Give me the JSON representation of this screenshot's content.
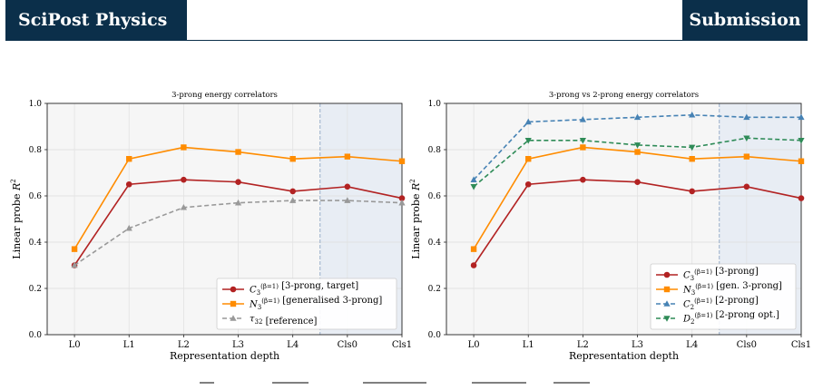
{
  "header": {
    "journal": "SciPost Physics",
    "tag": "Submission"
  },
  "chart_data": [
    {
      "type": "line",
      "title": "3-prong energy correlators",
      "xlabel": "Representation depth",
      "ylabel": "Linear probe R²",
      "ylim": [
        0.0,
        1.0
      ],
      "yticks": [
        "0.0",
        "0.2",
        "0.4",
        "0.6",
        "0.8",
        "1.0"
      ],
      "categories": [
        "L0",
        "L1",
        "L2",
        "L3",
        "L4",
        "Cls0",
        "Cls1"
      ],
      "grid": true,
      "shaded_region_from": "Cls0",
      "legend_placement": "lower-right",
      "series": [
        {
          "name": "C3(β=1)  [3-prong, target]",
          "color": "#b22222",
          "marker": "circle",
          "dash": "solid",
          "values": [
            0.3,
            0.65,
            0.67,
            0.66,
            0.62,
            0.64,
            0.59
          ]
        },
        {
          "name": "N3(β=1)  [generalised 3-prong]",
          "color": "#ff8c00",
          "marker": "square",
          "dash": "solid",
          "values": [
            0.37,
            0.76,
            0.81,
            0.79,
            0.76,
            0.77,
            0.75
          ]
        },
        {
          "name": "τ32  [reference]",
          "color": "#999999",
          "marker": "triangle-up",
          "dash": "dashed",
          "values": [
            0.3,
            0.46,
            0.55,
            0.57,
            0.58,
            0.58,
            0.57
          ]
        }
      ]
    },
    {
      "type": "line",
      "title": "3-prong vs 2-prong energy correlators",
      "xlabel": "Representation depth",
      "ylabel": "Linear probe R²",
      "ylim": [
        0.0,
        1.0
      ],
      "yticks": [
        "0.0",
        "0.2",
        "0.4",
        "0.6",
        "0.8",
        "1.0"
      ],
      "categories": [
        "L0",
        "L1",
        "L2",
        "L3",
        "L4",
        "Cls0",
        "Cls1"
      ],
      "grid": true,
      "shaded_region_from": "Cls0",
      "legend_placement": "lower-right",
      "series": [
        {
          "name": "C3(β=1)  [3-prong]",
          "color": "#b22222",
          "marker": "circle",
          "dash": "solid",
          "values": [
            0.3,
            0.65,
            0.67,
            0.66,
            0.62,
            0.64,
            0.59
          ]
        },
        {
          "name": "N3(β=1)  [gen. 3-prong]",
          "color": "#ff8c00",
          "marker": "square",
          "dash": "solid",
          "values": [
            0.37,
            0.76,
            0.81,
            0.79,
            0.76,
            0.77,
            0.75
          ]
        },
        {
          "name": "C2(β=1)  [2-prong]",
          "color": "#4682b4",
          "marker": "triangle-up",
          "dash": "dashed",
          "values": [
            0.67,
            0.92,
            0.93,
            0.94,
            0.95,
            0.94,
            0.94
          ]
        },
        {
          "name": "D2(β=1)  [2-prong opt.]",
          "color": "#2e8b57",
          "marker": "triangle-down",
          "dash": "dashed",
          "values": [
            0.64,
            0.84,
            0.84,
            0.82,
            0.81,
            0.85,
            0.84
          ]
        }
      ]
    }
  ]
}
